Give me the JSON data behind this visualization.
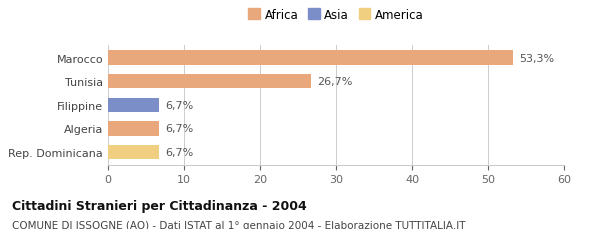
{
  "categories": [
    "Marocco",
    "Tunisia",
    "Filippine",
    "Algeria",
    "Rep. Dominicana"
  ],
  "values": [
    53.3,
    26.7,
    6.7,
    6.7,
    6.7
  ],
  "bar_colors": [
    "#e8a87c",
    "#e8a87c",
    "#7b8ec8",
    "#e8a87c",
    "#f0d080"
  ],
  "value_labels": [
    "53,3%",
    "26,7%",
    "6,7%",
    "6,7%",
    "6,7%"
  ],
  "xlim": [
    0,
    60
  ],
  "xticks": [
    0,
    10,
    20,
    30,
    40,
    50,
    60
  ],
  "legend_items": [
    {
      "label": "Africa",
      "color": "#e8a87c"
    },
    {
      "label": "Asia",
      "color": "#7b8ec8"
    },
    {
      "label": "America",
      "color": "#f0d080"
    }
  ],
  "title": "Cittadini Stranieri per Cittadinanza - 2004",
  "subtitle": "COMUNE DI ISSOGNE (AO) - Dati ISTAT al 1° gennaio 2004 - Elaborazione TUTTITALIA.IT",
  "background_color": "#ffffff",
  "bar_height": 0.6,
  "title_fontsize": 9,
  "subtitle_fontsize": 7.5,
  "tick_fontsize": 8,
  "label_fontsize": 8
}
